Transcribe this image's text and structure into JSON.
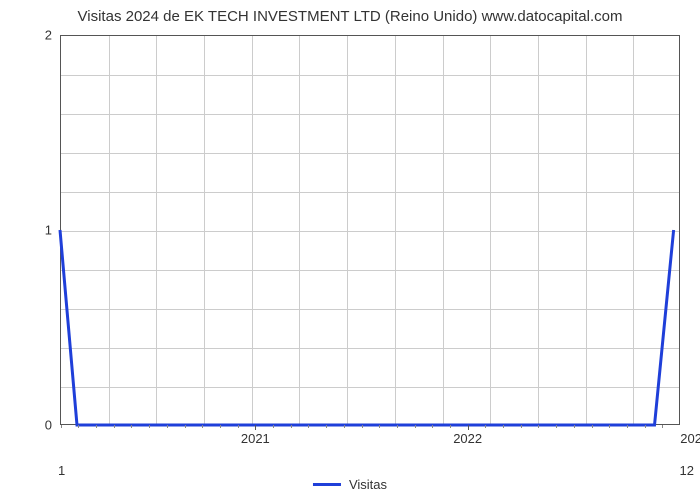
{
  "chart": {
    "type": "line",
    "title": "Visitas 2024 de EK TECH INVESTMENT LTD (Reino Unido) www.datocapital.com",
    "title_fontsize": 15,
    "title_color": "#333333",
    "background_color": "#ffffff",
    "plot_border_color": "#555555",
    "grid_color": "#cccccc",
    "y": {
      "min": 0,
      "max": 2,
      "ticks": [
        0,
        1,
        2
      ],
      "minor_step": 0.2,
      "label_fontsize": 13
    },
    "x": {
      "min": 2020.08,
      "max": 2023.0,
      "major_ticks": [
        2021,
        2022
      ],
      "major_labels": [
        "2021",
        "2022"
      ],
      "corner_left_label": "1",
      "corner_right_label": "12",
      "right_edge_label": "202",
      "minor_per_year": 12,
      "label_fontsize": 13
    },
    "grid": {
      "h_count": 10,
      "v_count": 13
    },
    "series": {
      "name": "Visitas",
      "color": "#1f3fd9",
      "line_width": 3,
      "points": [
        {
          "x": 2020.08,
          "y": 1.0
        },
        {
          "x": 2020.16,
          "y": 0.0
        },
        {
          "x": 2022.88,
          "y": 0.0
        },
        {
          "x": 2022.97,
          "y": 1.0
        }
      ]
    },
    "legend": {
      "label": "Visitas",
      "swatch_color": "#1f3fd9",
      "fontsize": 13
    }
  }
}
